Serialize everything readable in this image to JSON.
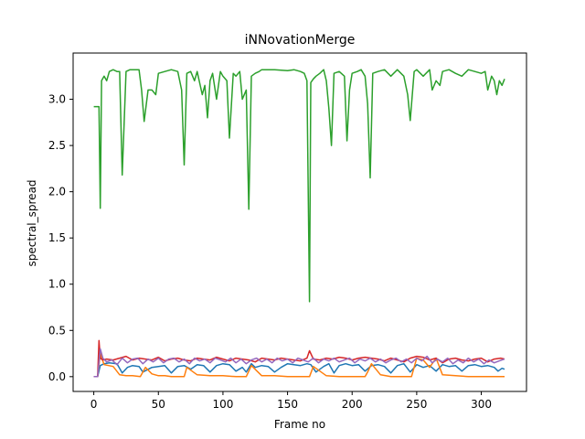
{
  "chart_data": {
    "type": "line",
    "title": "iNNovationMerge",
    "xlabel": "Frame no",
    "ylabel": "spectral_spread",
    "xlim": [
      -16,
      335
    ],
    "ylim": [
      -0.16,
      3.5
    ],
    "xticks": [
      0,
      50,
      100,
      150,
      200,
      250,
      300
    ],
    "yticks": [
      0.0,
      0.5,
      1.0,
      1.5,
      2.0,
      2.5,
      3.0
    ],
    "ytick_labels": [
      "0.0",
      "0.5",
      "1.0",
      "1.5",
      "2.0",
      "2.5",
      "3.0"
    ],
    "grid": false,
    "legend": "none",
    "series": [
      {
        "color": "#1f77b4",
        "x": [
          0,
          3,
          5,
          8,
          12,
          18,
          22,
          26,
          30,
          35,
          38,
          45,
          55,
          60,
          65,
          70,
          75,
          80,
          85,
          90,
          95,
          100,
          105,
          110,
          115,
          118,
          122,
          125,
          130,
          135,
          140,
          145,
          150,
          155,
          160,
          165,
          168,
          172,
          178,
          182,
          186,
          190,
          195,
          200,
          205,
          210,
          215,
          220,
          225,
          230,
          235,
          240,
          245,
          250,
          255,
          260,
          265,
          270,
          275,
          280,
          285,
          290,
          295,
          300,
          305,
          310,
          313,
          316,
          318
        ],
        "y": [
          0.0,
          0.0,
          0.12,
          0.14,
          0.15,
          0.14,
          0.04,
          0.1,
          0.12,
          0.11,
          0.05,
          0.1,
          0.12,
          0.04,
          0.11,
          0.12,
          0.08,
          0.13,
          0.12,
          0.05,
          0.12,
          0.14,
          0.13,
          0.06,
          0.1,
          0.05,
          0.14,
          0.1,
          0.12,
          0.11,
          0.05,
          0.1,
          0.14,
          0.13,
          0.12,
          0.14,
          0.13,
          0.05,
          0.11,
          0.14,
          0.04,
          0.12,
          0.14,
          0.12,
          0.13,
          0.06,
          0.12,
          0.13,
          0.11,
          0.04,
          0.12,
          0.14,
          0.05,
          0.13,
          0.1,
          0.12,
          0.06,
          0.13,
          0.11,
          0.12,
          0.06,
          0.12,
          0.13,
          0.11,
          0.12,
          0.1,
          0.06,
          0.09,
          0.08
        ]
      },
      {
        "color": "#ff7f0e",
        "x": [
          0,
          3,
          5,
          8,
          15,
          20,
          25,
          30,
          36,
          40,
          45,
          50,
          55,
          60,
          65,
          70,
          72,
          80,
          90,
          100,
          110,
          118,
          122,
          130,
          140,
          150,
          160,
          167,
          170,
          180,
          190,
          200,
          210,
          212,
          215,
          222,
          230,
          240,
          246,
          250,
          255,
          260,
          265,
          270,
          280,
          290,
          300,
          310,
          318
        ],
        "y": [
          0.0,
          0.0,
          0.25,
          0.13,
          0.11,
          0.02,
          0.01,
          0.01,
          0.0,
          0.1,
          0.03,
          0.01,
          0.01,
          0.0,
          0.0,
          0.0,
          0.1,
          0.02,
          0.01,
          0.01,
          0.0,
          0.0,
          0.12,
          0.01,
          0.01,
          0.0,
          0.0,
          0.0,
          0.11,
          0.01,
          0.0,
          0.0,
          0.0,
          0.05,
          0.14,
          0.02,
          0.0,
          0.0,
          0.0,
          0.2,
          0.18,
          0.1,
          0.2,
          0.02,
          0.01,
          0.0,
          0.0,
          0.0,
          0.0
        ]
      },
      {
        "color": "#2ca02c",
        "x": [
          0,
          3,
          4,
          5,
          6,
          8,
          10,
          12,
          15,
          18,
          20,
          22,
          25,
          28,
          32,
          35,
          37,
          39,
          42,
          45,
          48,
          50,
          55,
          60,
          65,
          68,
          70,
          72,
          75,
          78,
          80,
          84,
          86,
          88,
          90,
          92,
          95,
          98,
          100,
          103,
          105,
          108,
          110,
          113,
          115,
          118,
          120,
          122,
          125,
          128,
          130,
          140,
          150,
          155,
          160,
          163,
          165,
          167,
          168,
          170,
          172,
          175,
          178,
          180,
          182,
          184,
          186,
          190,
          194,
          196,
          198,
          200,
          204,
          207,
          210,
          212,
          214,
          216,
          220,
          225,
          230,
          235,
          240,
          243,
          245,
          248,
          250,
          255,
          260,
          262,
          265,
          268,
          270,
          275,
          280,
          285,
          290,
          295,
          300,
          303,
          305,
          308,
          310,
          312,
          314,
          316,
          318
        ],
        "y": [
          2.92,
          2.92,
          2.92,
          1.82,
          3.2,
          3.25,
          3.2,
          3.3,
          3.32,
          3.3,
          3.3,
          2.18,
          3.3,
          3.32,
          3.32,
          3.32,
          3.1,
          2.76,
          3.1,
          3.1,
          3.05,
          3.28,
          3.3,
          3.32,
          3.3,
          3.1,
          2.29,
          3.28,
          3.3,
          3.2,
          3.3,
          3.05,
          3.15,
          2.8,
          3.2,
          3.28,
          3.0,
          3.3,
          3.25,
          3.2,
          2.58,
          3.28,
          3.25,
          3.3,
          3.0,
          3.1,
          1.81,
          3.25,
          3.28,
          3.3,
          3.32,
          3.32,
          3.31,
          3.32,
          3.3,
          3.28,
          3.2,
          0.81,
          3.18,
          3.22,
          3.25,
          3.28,
          3.32,
          3.2,
          2.9,
          2.5,
          3.28,
          3.3,
          3.25,
          2.55,
          3.1,
          3.28,
          3.3,
          3.32,
          3.25,
          2.95,
          2.15,
          3.28,
          3.3,
          3.32,
          3.25,
          3.32,
          3.25,
          3.05,
          2.77,
          3.3,
          3.32,
          3.25,
          3.32,
          3.1,
          3.2,
          3.15,
          3.3,
          3.32,
          3.28,
          3.25,
          3.32,
          3.3,
          3.28,
          3.3,
          3.1,
          3.25,
          3.2,
          3.05,
          3.2,
          3.15,
          3.22
        ]
      },
      {
        "color": "#d62728",
        "x": [
          0,
          3,
          4,
          5,
          7,
          10,
          15,
          20,
          25,
          30,
          35,
          40,
          45,
          50,
          55,
          60,
          65,
          70,
          75,
          80,
          85,
          90,
          95,
          100,
          105,
          110,
          115,
          120,
          125,
          130,
          135,
          140,
          145,
          150,
          155,
          160,
          165,
          167,
          170,
          175,
          180,
          185,
          190,
          195,
          200,
          205,
          210,
          215,
          220,
          225,
          230,
          235,
          240,
          245,
          250,
          255,
          260,
          265,
          270,
          275,
          280,
          285,
          290,
          295,
          300,
          305,
          310,
          315,
          318
        ],
        "y": [
          0.0,
          0.0,
          0.39,
          0.2,
          0.18,
          0.19,
          0.18,
          0.2,
          0.22,
          0.18,
          0.2,
          0.19,
          0.18,
          0.21,
          0.17,
          0.19,
          0.2,
          0.18,
          0.17,
          0.2,
          0.19,
          0.18,
          0.21,
          0.19,
          0.17,
          0.2,
          0.19,
          0.18,
          0.16,
          0.2,
          0.19,
          0.18,
          0.2,
          0.19,
          0.18,
          0.17,
          0.2,
          0.28,
          0.19,
          0.18,
          0.2,
          0.19,
          0.21,
          0.2,
          0.18,
          0.2,
          0.21,
          0.2,
          0.19,
          0.17,
          0.2,
          0.18,
          0.16,
          0.2,
          0.22,
          0.21,
          0.18,
          0.2,
          0.15,
          0.19,
          0.2,
          0.18,
          0.17,
          0.19,
          0.2,
          0.16,
          0.19,
          0.2,
          0.19
        ]
      },
      {
        "color": "#9467bd",
        "x": [
          0,
          3,
          5,
          7,
          10,
          14,
          18,
          22,
          26,
          30,
          34,
          38,
          42,
          46,
          50,
          54,
          58,
          62,
          66,
          70,
          74,
          78,
          82,
          86,
          90,
          94,
          98,
          102,
          106,
          110,
          114,
          118,
          122,
          126,
          130,
          134,
          138,
          142,
          146,
          150,
          154,
          158,
          162,
          166,
          170,
          174,
          178,
          182,
          186,
          190,
          194,
          198,
          202,
          206,
          210,
          214,
          218,
          222,
          226,
          230,
          234,
          238,
          242,
          246,
          250,
          254,
          258,
          262,
          266,
          270,
          274,
          278,
          282,
          286,
          290,
          294,
          298,
          302,
          306,
          310,
          314,
          318
        ],
        "y": [
          0.0,
          0.0,
          0.3,
          0.2,
          0.16,
          0.18,
          0.13,
          0.2,
          0.15,
          0.19,
          0.2,
          0.14,
          0.19,
          0.16,
          0.2,
          0.15,
          0.19,
          0.2,
          0.16,
          0.19,
          0.14,
          0.2,
          0.17,
          0.19,
          0.15,
          0.2,
          0.18,
          0.16,
          0.2,
          0.15,
          0.19,
          0.14,
          0.18,
          0.2,
          0.16,
          0.19,
          0.15,
          0.2,
          0.17,
          0.19,
          0.15,
          0.2,
          0.18,
          0.16,
          0.2,
          0.15,
          0.19,
          0.17,
          0.2,
          0.16,
          0.18,
          0.2,
          0.15,
          0.19,
          0.17,
          0.2,
          0.16,
          0.19,
          0.15,
          0.18,
          0.2,
          0.16,
          0.19,
          0.15,
          0.2,
          0.17,
          0.22,
          0.15,
          0.19,
          0.16,
          0.2,
          0.14,
          0.18,
          0.15,
          0.2,
          0.16,
          0.19,
          0.14,
          0.18,
          0.15,
          0.17,
          0.19
        ]
      }
    ]
  }
}
